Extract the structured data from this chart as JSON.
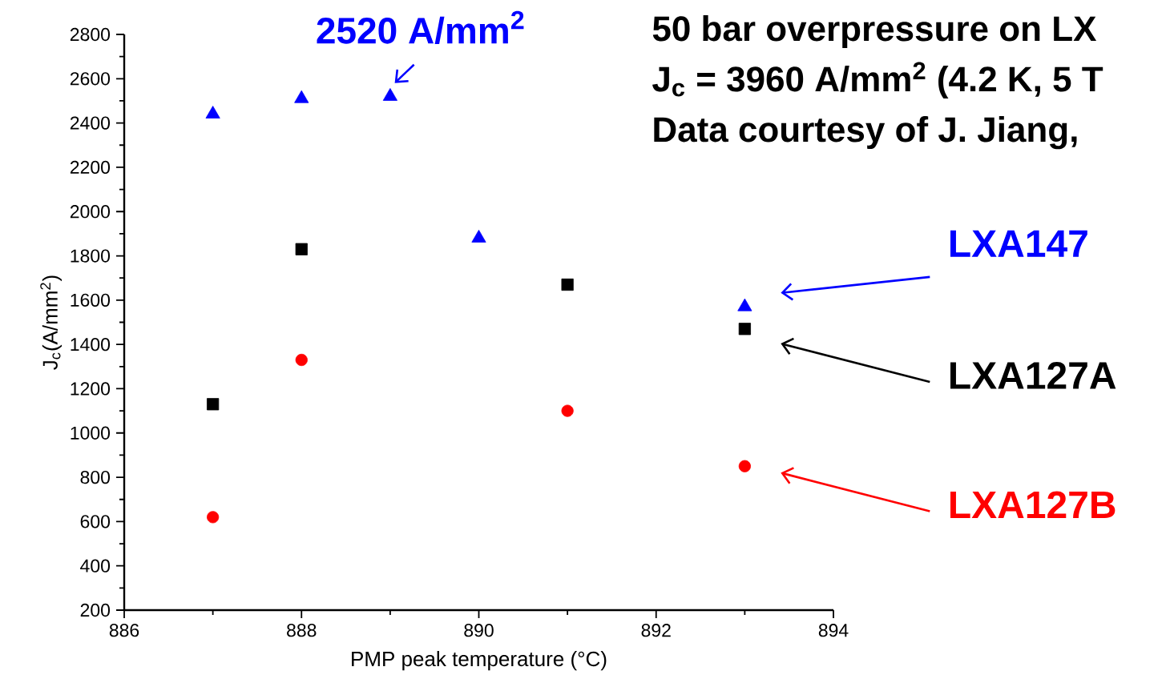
{
  "chart_data": {
    "type": "scatter",
    "xlabel": "PMP peak temperature (°C)",
    "ylabel": "J$_{c}$(A/mm$^{2}$)",
    "xlim": [
      886,
      894
    ],
    "xticks": [
      886,
      888,
      890,
      892,
      894
    ],
    "ylim": [
      200,
      2800
    ],
    "yticks": [
      200,
      400,
      600,
      800,
      1000,
      1200,
      1400,
      1600,
      1800,
      2000,
      2200,
      2400,
      2600,
      2800
    ],
    "legend": "right",
    "grid": false,
    "series": [
      {
        "name": "LXA147",
        "color": "#0000ff",
        "marker": "triangle",
        "x": [
          887,
          888,
          889,
          890,
          893
        ],
        "values": [
          2440,
          2510,
          2520,
          1880,
          1570
        ]
      },
      {
        "name": "LXA127A",
        "color": "#000000",
        "marker": "square",
        "x": [
          887,
          888,
          891,
          893
        ],
        "values": [
          1130,
          1830,
          1670,
          1470
        ]
      },
      {
        "name": "LXA127B",
        "color": "#ff0000",
        "marker": "circle",
        "x": [
          887,
          888,
          891,
          893
        ],
        "values": [
          620,
          1330,
          1100,
          850
        ]
      }
    ],
    "annotations": [
      {
        "text": "2520 A/mm$^{2}$",
        "x": 889,
        "y": 2520
      },
      "50 bar overpressure on LX",
      "J$_{c}$ = 3960 A/mm$^{2}$ (4.2 K, 5 T",
      "Data courtesy of J. Jiang,"
    ]
  }
}
